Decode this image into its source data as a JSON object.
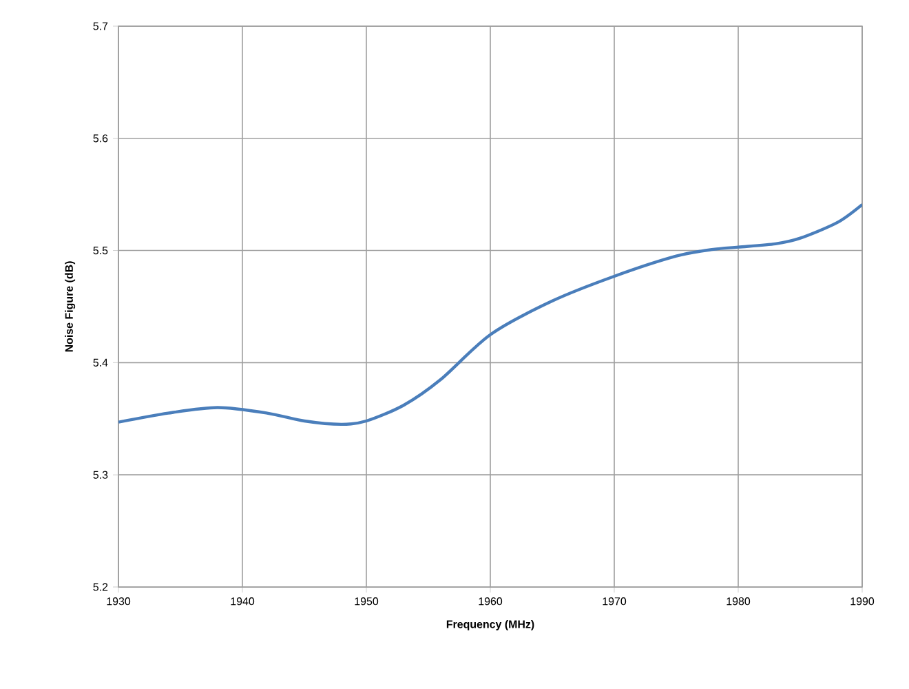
{
  "chart_data": {
    "type": "line",
    "xlabel": "Frequency (MHz)",
    "ylabel": "Noise Figure (dB)",
    "x": [
      1930,
      1934,
      1938,
      1942,
      1945,
      1948,
      1950,
      1953,
      1956,
      1960,
      1965,
      1970,
      1975,
      1978,
      1980,
      1983,
      1985,
      1988,
      1990
    ],
    "series": [
      {
        "color": "#4a7ebb",
        "values": [
          5.347,
          5.355,
          5.36,
          5.355,
          5.348,
          5.345,
          5.348,
          5.362,
          5.385,
          5.425,
          5.455,
          5.477,
          5.495,
          5.501,
          5.503,
          5.506,
          5.511,
          5.525,
          5.541
        ]
      }
    ],
    "xlim": [
      1930,
      1990
    ],
    "xticks": [
      1930,
      1940,
      1950,
      1960,
      1970,
      1980,
      1990
    ],
    "ylim": [
      5.2,
      5.7
    ],
    "yticks": [
      5.2,
      5.3,
      5.4,
      5.5,
      5.6,
      5.7
    ],
    "grid": true,
    "legend": false,
    "marker": "none",
    "line_style": "solid"
  }
}
